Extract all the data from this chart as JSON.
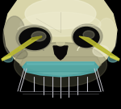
{
  "background_color": "#000000",
  "skull_body": "#d8d4a8",
  "skull_light": "#eeecd0",
  "skull_dark": "#8a8870",
  "skull_darker": "#6a6850",
  "eye_dark": "#0a0a0a",
  "eye_mid": "#1a1810",
  "nose_dark": "#0a0808",
  "implant_teal": "#5ab8b8",
  "implant_teal_light": "#80d0d0",
  "implant_teal_dark": "#3a9090",
  "zygoma_yellow": "#b8b830",
  "zygoma_yellow_light": "#d8d848",
  "zygoma_yellow_dark": "#808018",
  "screw_color": "#c0c0c8",
  "screw_dark": "#606068",
  "wire_color": "#909098",
  "figsize": [
    1.5,
    1.35
  ],
  "dpi": 100
}
